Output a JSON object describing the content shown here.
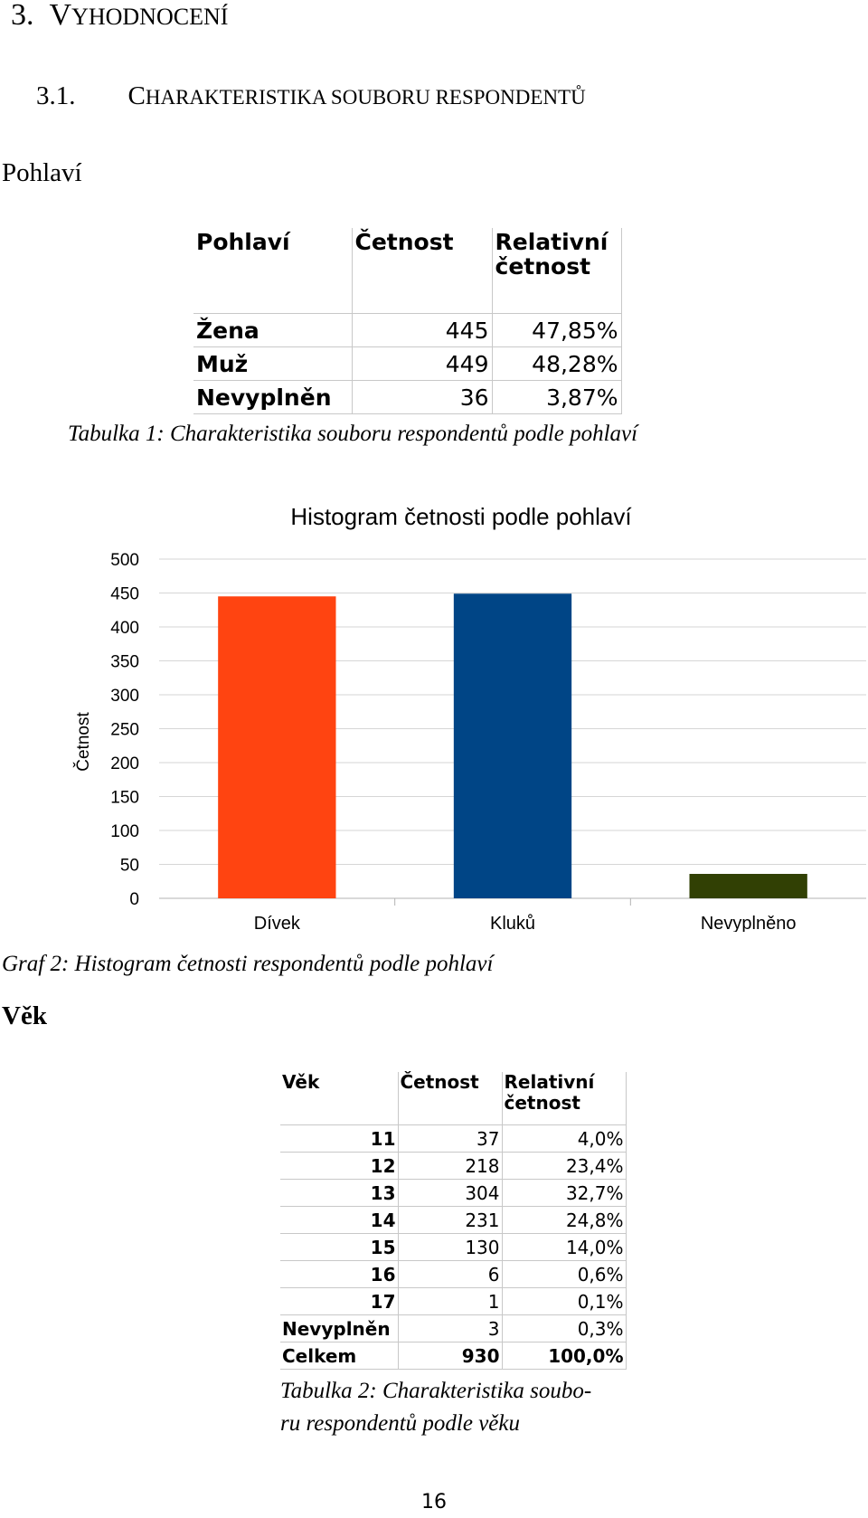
{
  "heading1": {
    "number": "3.",
    "initial": "V",
    "rest": "YHODNOCENÍ"
  },
  "heading2": {
    "number": "3.1.",
    "initial": "C",
    "rest": "HARAKTERISTIKA SOUBORU RESPONDENTŮ"
  },
  "section_gender": "Pohlaví",
  "table1": {
    "headers": [
      "Pohlaví",
      "Četnost",
      "Relativní četnost"
    ],
    "rows": [
      {
        "label": "Žena",
        "count": "445",
        "rel": "47,85%"
      },
      {
        "label": "Muž",
        "count": "449",
        "rel": "48,28%"
      },
      {
        "label": "Nevyplněn",
        "count": "36",
        "rel": "3,87%"
      }
    ],
    "caption": "Tabulka 1: Charakteristika souboru respondentů podle pohlaví"
  },
  "chart_data": {
    "type": "bar",
    "title": "Histogram četnosti podle pohlaví",
    "xlabel": "",
    "ylabel": "Četnost",
    "categories": [
      "Dívek",
      "Kluků",
      "Nevyplněno"
    ],
    "values": [
      445,
      449,
      36
    ],
    "colors": [
      "#ff4411",
      "#004586",
      "#314004"
    ],
    "ylim": [
      0,
      500
    ],
    "yticks": [
      "0",
      "50",
      "100",
      "150",
      "200",
      "250",
      "300",
      "350",
      "400",
      "450",
      "500"
    ],
    "grid": true
  },
  "chart_caption": "Graf 2: Histogram četnosti respondentů podle pohlaví",
  "section_age": "Věk",
  "table2": {
    "headers": [
      "Věk",
      "Četnost",
      "Relativní četnost"
    ],
    "rows": [
      {
        "label": "11",
        "count": "37",
        "rel": "4,0%"
      },
      {
        "label": "12",
        "count": "218",
        "rel": "23,4%"
      },
      {
        "label": "13",
        "count": "304",
        "rel": "32,7%"
      },
      {
        "label": "14",
        "count": "231",
        "rel": "24,8%"
      },
      {
        "label": "15",
        "count": "130",
        "rel": "14,0%"
      },
      {
        "label": "16",
        "count": "6",
        "rel": "0,6%"
      },
      {
        "label": "17",
        "count": "1",
        "rel": "0,1%"
      },
      {
        "label": "Nevyplněn",
        "count": "3",
        "rel": "0,3%"
      }
    ],
    "total": {
      "label": "Celkem",
      "count": "930",
      "rel": "100,0%"
    },
    "caption_line1": "Tabulka 2: Charakteristika soubo-",
    "caption_line2": "ru respondentů podle věku"
  },
  "page_number": "16"
}
